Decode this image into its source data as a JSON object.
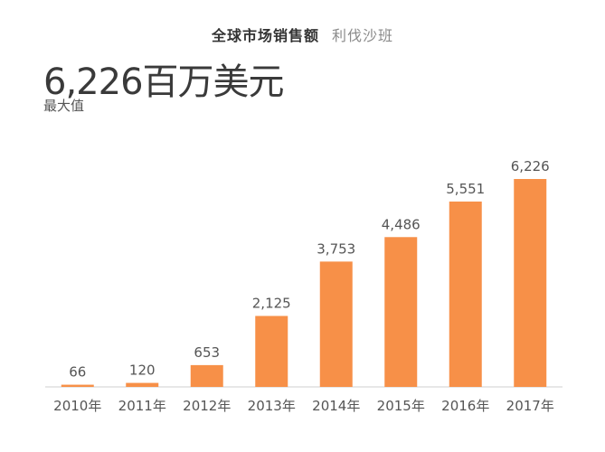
{
  "header": {
    "title": "全球市场销售额",
    "subtitle": "利伐沙班"
  },
  "summary": {
    "value": "6,226百万美元",
    "caption": "最大值"
  },
  "colors": {
    "bar": "#f79048"
  },
  "chart_data": {
    "type": "bar",
    "categories": [
      "2010年",
      "2011年",
      "2012年",
      "2013年",
      "2014年",
      "2015年",
      "2016年",
      "2017年"
    ],
    "values": [
      66,
      120,
      653,
      2125,
      3753,
      4486,
      5551,
      6226
    ],
    "value_labels": [
      "66",
      "120",
      "653",
      "2,125",
      "3,753",
      "4,486",
      "5,551",
      "6,226"
    ],
    "title": "全球市场销售额",
    "subtitle": "利伐沙班",
    "ylim": [
      0,
      6226
    ],
    "grid": false,
    "legend": "none"
  }
}
